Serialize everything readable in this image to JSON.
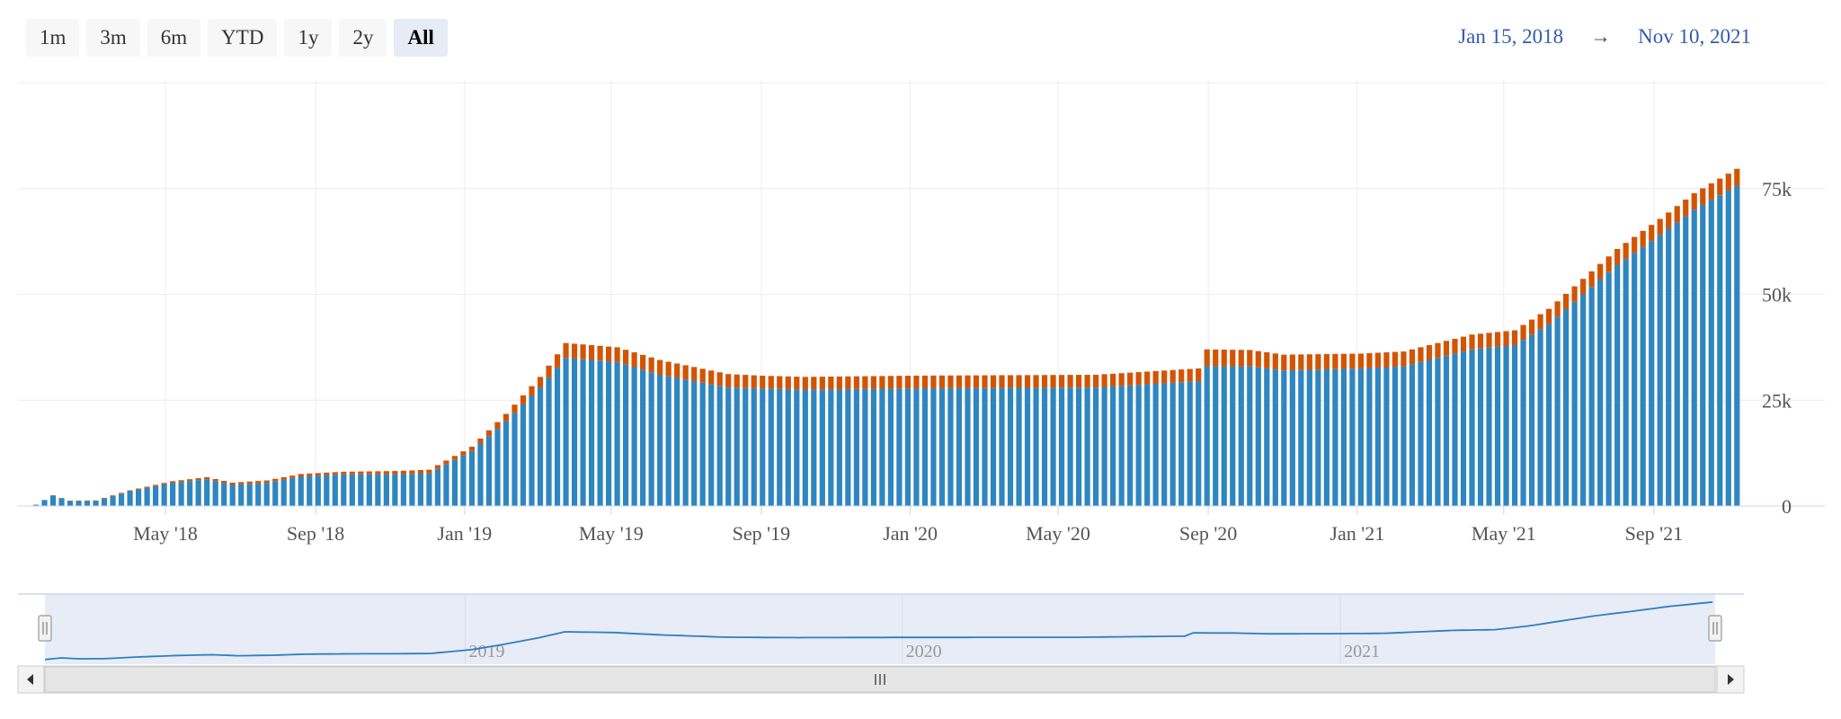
{
  "range_selector": {
    "buttons": [
      {
        "label": "1m",
        "active": false
      },
      {
        "label": "3m",
        "active": false
      },
      {
        "label": "6m",
        "active": false
      },
      {
        "label": "YTD",
        "active": false
      },
      {
        "label": "1y",
        "active": false
      },
      {
        "label": "2y",
        "active": false
      },
      {
        "label": "All",
        "active": true
      }
    ],
    "from": "Jan 15, 2018",
    "arrow": "→",
    "to": "Nov 10, 2021"
  },
  "colors": {
    "series_primary": "#2e86c1",
    "series_secondary": "#d35400",
    "navigator_fill": "#e8ecf6",
    "navigator_line": "#2e7fc0"
  },
  "navigator": {
    "labels": [
      "2019",
      "2020",
      "2021"
    ],
    "scroll_left_icon": "triangle-left-icon",
    "scroll_right_icon": "triangle-right-icon",
    "scroll_grip_icon": "grip-icon"
  },
  "chart_data": {
    "type": "bar",
    "stacked": true,
    "x_start": "2018-01-15",
    "x_end": "2021-11-10",
    "x_ticks": [
      "May '18",
      "Sep '18",
      "Jan '19",
      "May '19",
      "Sep '19",
      "Jan '20",
      "May '20",
      "Sep '20",
      "Jan '21",
      "May '21",
      "Sep '21"
    ],
    "y_ticks": [
      "0",
      "25k",
      "50k",
      "75k"
    ],
    "ylim": [
      0,
      100000
    ],
    "y_axis_position": "right",
    "grid": true,
    "legend": "none",
    "series_count": 2,
    "series_keyframes": [
      {
        "color": "#2e86c1",
        "points": [
          [
            "2018-01-15",
            300
          ],
          [
            "2018-01-29",
            2500
          ],
          [
            "2018-02-12",
            1200
          ],
          [
            "2018-03-05",
            1200
          ],
          [
            "2018-04-02",
            3500
          ],
          [
            "2018-05-07",
            5500
          ],
          [
            "2018-06-04",
            6300
          ],
          [
            "2018-06-25",
            5000
          ],
          [
            "2018-07-23",
            5500
          ],
          [
            "2018-08-20",
            7000
          ],
          [
            "2018-09-24",
            7500
          ],
          [
            "2018-11-05",
            7500
          ],
          [
            "2018-12-03",
            7700
          ],
          [
            "2019-01-07",
            13000
          ],
          [
            "2019-02-04",
            20000
          ],
          [
            "2019-03-04",
            28000
          ],
          [
            "2019-03-25",
            35000
          ],
          [
            "2019-05-06",
            34000
          ],
          [
            "2019-06-10",
            31000
          ],
          [
            "2019-08-05",
            28000
          ],
          [
            "2019-10-07",
            27500
          ],
          [
            "2020-01-06",
            27800
          ],
          [
            "2020-06-01",
            28000
          ],
          [
            "2020-08-24",
            29500
          ],
          [
            "2020-08-31",
            33000
          ],
          [
            "2020-10-05",
            33000
          ],
          [
            "2020-11-02",
            32000
          ],
          [
            "2021-01-04",
            32500
          ],
          [
            "2021-02-08",
            33000
          ],
          [
            "2021-04-05",
            37000
          ],
          [
            "2021-05-10",
            38000
          ],
          [
            "2021-06-07",
            43000
          ],
          [
            "2021-07-05",
            50000
          ],
          [
            "2021-08-02",
            57000
          ],
          [
            "2021-09-06",
            64000
          ],
          [
            "2021-10-04",
            70000
          ],
          [
            "2021-11-10",
            76000
          ]
        ]
      },
      {
        "color": "#d35400",
        "points": [
          [
            "2018-01-15",
            0
          ],
          [
            "2018-04-02",
            200
          ],
          [
            "2018-06-04",
            500
          ],
          [
            "2018-09-24",
            600
          ],
          [
            "2019-01-07",
            1000
          ],
          [
            "2019-03-04",
            2500
          ],
          [
            "2019-03-25",
            3500
          ],
          [
            "2019-06-10",
            3500
          ],
          [
            "2019-09-02",
            3000
          ],
          [
            "2020-06-01",
            3000
          ],
          [
            "2020-08-24",
            3000
          ],
          [
            "2020-08-31",
            4000
          ],
          [
            "2021-01-04",
            3500
          ],
          [
            "2021-05-10",
            3500
          ],
          [
            "2021-11-10",
            4000
          ]
        ]
      }
    ]
  }
}
